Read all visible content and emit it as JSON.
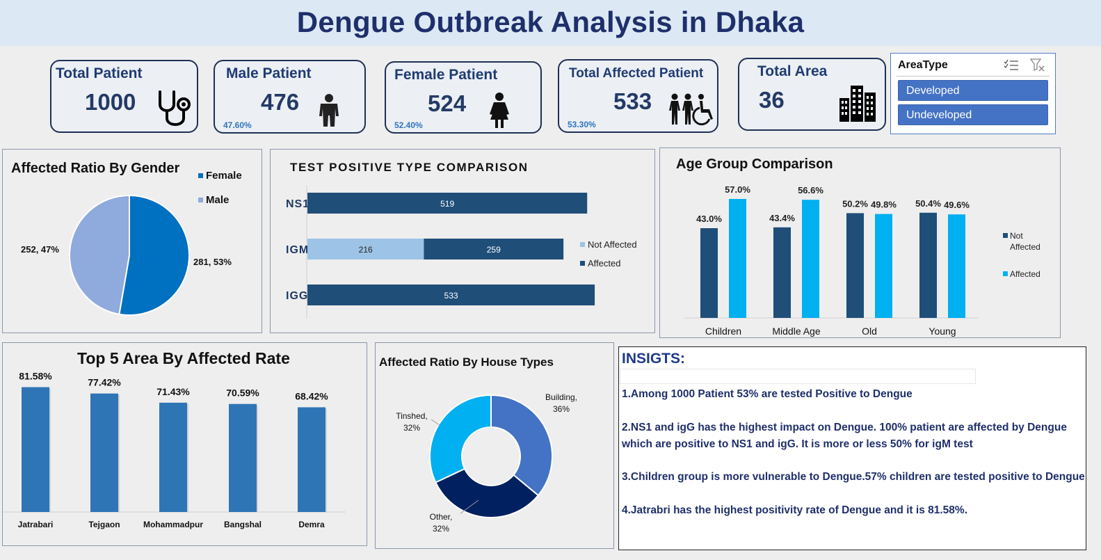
{
  "title": "Dengue Outbreak Analysis in Dhaka",
  "kpis": {
    "total_patient": {
      "label": "Total Patient",
      "value": "1000"
    },
    "male_patient": {
      "label": "Male Patient",
      "value": "476",
      "pct": "47.60%"
    },
    "female_patient": {
      "label": "Female Patient",
      "value": "524",
      "pct": "52.40%"
    },
    "total_affected": {
      "label": "Total Affected Patient",
      "value": "533",
      "pct": "53.30%"
    },
    "total_area": {
      "label": "Total Area",
      "value": "36"
    }
  },
  "slicer": {
    "header": "AreaType",
    "options": [
      "Developed",
      "Undeveloped"
    ]
  },
  "colors": {
    "dark_blue": "#1f4e79",
    "light_blue": "#9dc3e6",
    "cyan": "#00b0f0",
    "mid_blue": "#2e75b6",
    "female_blue": "#0070c0",
    "male_blue": "#8faadc",
    "navy": "#002060",
    "building_blue": "#4472c4"
  },
  "chart_data": [
    {
      "type": "pie",
      "title": "Affected Ratio By Gender",
      "categories": [
        "Female",
        "Male"
      ],
      "values": [
        281,
        252
      ],
      "percents": [
        53,
        47
      ],
      "data_labels": [
        "281, 53%",
        "252, 47%"
      ],
      "legend": "top-right"
    },
    {
      "type": "bar",
      "orientation": "horizontal",
      "stacked": true,
      "title": "TEST POSITIVE TYPE COMPARISON",
      "categories": [
        "NS1",
        "IGM",
        "IGG"
      ],
      "series": [
        {
          "name": "Not Affected",
          "values": [
            0,
            216,
            0
          ]
        },
        {
          "name": "Affected",
          "values": [
            519,
            259,
            533
          ]
        }
      ],
      "data_labels": [
        "519",
        "216",
        "259",
        "533"
      ],
      "legend": "right"
    },
    {
      "type": "bar",
      "title": "Age Group Comparison",
      "categories": [
        "Children",
        "Middle Age",
        "Old",
        "Young"
      ],
      "series": [
        {
          "name": "Not Affected",
          "values": [
            43.0,
            43.4,
            50.2,
            50.4
          ],
          "labels": [
            "43.0%",
            "43.4%",
            "50.2%",
            "50.4%"
          ]
        },
        {
          "name": "Affected",
          "values": [
            57.0,
            56.6,
            49.8,
            49.6
          ],
          "labels": [
            "57.0%",
            "56.6%",
            "49.8%",
            "49.6%"
          ]
        }
      ],
      "legend_labels": [
        "Not",
        "Affected",
        "Affected"
      ],
      "ylim": [
        0,
        65
      ],
      "legend": "right"
    },
    {
      "type": "bar",
      "title": "Top 5 Area By Affected Rate",
      "categories": [
        "Jatrabari",
        "Tejgaon",
        "Mohammadpur",
        "Bangshal",
        "Demra"
      ],
      "values": [
        81.58,
        77.42,
        71.43,
        70.59,
        68.42
      ],
      "data_labels": [
        "81.58%",
        "77.42%",
        "71.43%",
        "70.59%",
        "68.42%"
      ],
      "ylim": [
        0,
        85
      ]
    },
    {
      "type": "pie",
      "subtype": "doughnut",
      "title": "Affected Ratio By House Types",
      "categories": [
        "Building",
        "Other",
        "Tinshed"
      ],
      "values": [
        36,
        32,
        32
      ],
      "data_labels": [
        [
          "Building,",
          "36%"
        ],
        [
          "Other,",
          "32%"
        ],
        [
          "Tinshed,",
          "32%"
        ]
      ]
    }
  ],
  "insights": {
    "heading": "INSIGTS:",
    "lines": [
      "1.Among 1000 Patient 53% are tested Positive to Dengue",
      "2.NS1 and igG has the highest impact on Dengue. 100% patient are affected by Dengue",
      "which are positive to NS1  and igG.       It is more or less 50% for igM test",
      "3.Children group is more vulnerable to Dengue.57% children are tested positive to Dengue",
      "4.Jatrabri has the highest positivity rate of Dengue and it is 81.58%."
    ]
  }
}
